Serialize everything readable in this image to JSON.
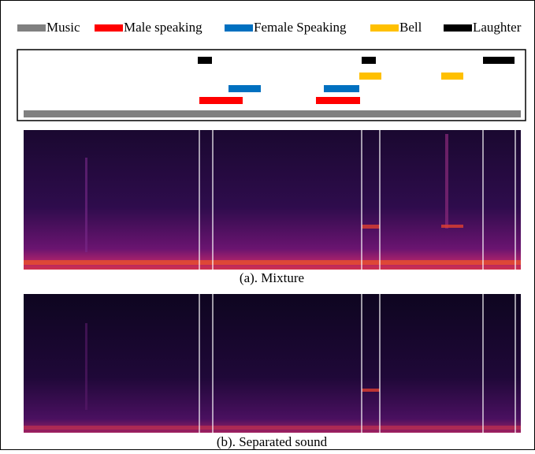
{
  "legend": [
    {
      "name": "Music",
      "color": "#808080"
    },
    {
      "name": "Male speaking",
      "color": "#ff0000"
    },
    {
      "name": "Female Speaking",
      "color": "#0070c0"
    },
    {
      "name": "Bell",
      "color": "#ffc000"
    },
    {
      "name": "Laughter",
      "color": "#000000"
    }
  ],
  "captions": {
    "mixture": "(a). Mixture",
    "separated": "(b). Separated sound"
  }
}
